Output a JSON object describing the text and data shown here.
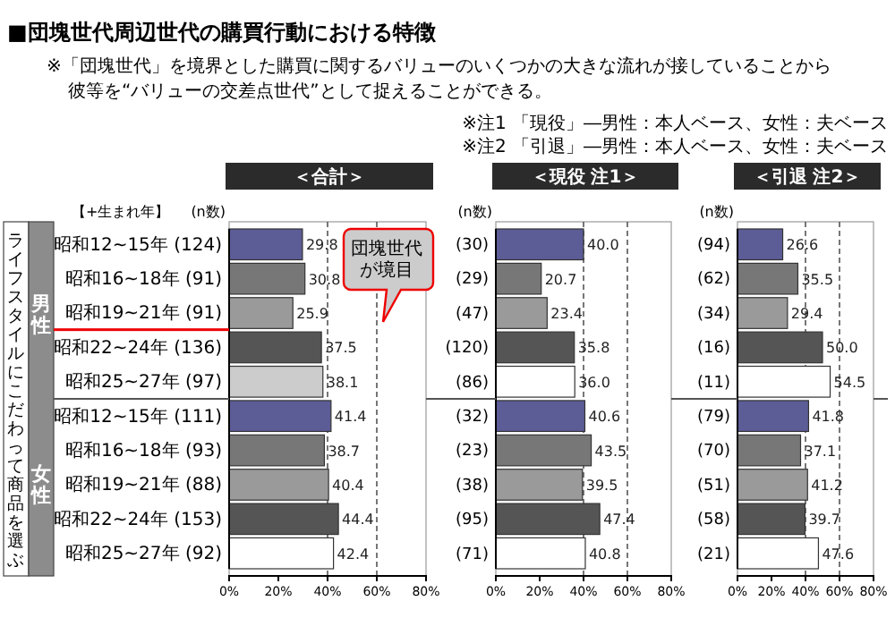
{
  "chart_data": [
    {
      "type": "bar",
      "orientation": "horizontal",
      "title": "＜合計＞",
      "categories": [
        "昭和12~15年 (124)",
        "昭和16~18年 (91)",
        "昭和19~21年 (91)",
        "昭和22~24年 (136)",
        "昭和25~27年 (97)",
        "昭和12~15年 (111)",
        "昭和16~18年 (93)",
        "昭和19~21年 (88)",
        "昭和22~24年 (153)",
        "昭和25~27年 (92)"
      ],
      "values": [
        29.8,
        30.8,
        25.9,
        37.5,
        38.1,
        41.4,
        38.7,
        40.4,
        44.4,
        42.4
      ],
      "value_labels": [
        "29.8",
        "30.8",
        "25.9",
        "37.5",
        "38.1",
        "41.4",
        "38.7",
        "40.4",
        "44.4",
        "42.4"
      ],
      "colors": [
        "#5c5c96",
        "#777777",
        "#9a9a9a",
        "#555555",
        "#cccccc",
        "#5c5c96",
        "#777777",
        "#9a9a9a",
        "#555555",
        "#ffffff"
      ],
      "xlim": [
        0,
        80
      ],
      "xticks": [
        {
          "value": 0,
          "label": "0%"
        },
        {
          "value": 20,
          "label": "20%"
        },
        {
          "value": 40,
          "label": "40%"
        },
        {
          "value": 60,
          "label": "60%"
        },
        {
          "value": 80,
          "label": "80%"
        }
      ],
      "ref_lines": [
        {
          "axis": "x",
          "value": 40,
          "line_style": "dashed"
        },
        {
          "axis": "x",
          "value": 60,
          "line_style": "dashed"
        }
      ],
      "annotations": [
        "■団塊世代周辺世代の購買行動における特徴",
        "※「団塊世代」を境界とした購買に関するバリューのいくつかの大きな流れが接していることから彼等を“バリューの交差点世代”として捉えることができる。",
        "【+生まれ年】",
        "(n数)",
        "ライフスタイルにこだわって商品を選ぶ",
        "男性",
        "女性",
        "団塊世代が境目"
      ]
    },
    {
      "type": "bar",
      "orientation": "horizontal",
      "title": "＜現役 注1＞",
      "categories": [
        "(30)",
        "(29)",
        "(47)",
        "(120)",
        "(86)",
        "(32)",
        "(23)",
        "(38)",
        "(95)",
        "(71)"
      ],
      "values": [
        40.0,
        20.7,
        23.4,
        35.8,
        36.0,
        40.6,
        43.5,
        39.5,
        47.4,
        40.8
      ],
      "value_labels": [
        "40.0",
        "20.7",
        "23.4",
        "35.8",
        "36.0",
        "40.6",
        "43.5",
        "39.5",
        "47.4",
        "40.8"
      ],
      "colors": [
        "#5c5c96",
        "#777777",
        "#9a9a9a",
        "#555555",
        "#ffffff",
        "#5c5c96",
        "#777777",
        "#9a9a9a",
        "#555555",
        "#ffffff"
      ],
      "xlim": [
        0,
        80
      ],
      "xticks": [
        {
          "value": 0,
          "label": "0%"
        },
        {
          "value": 20,
          "label": "20%"
        },
        {
          "value": 40,
          "label": "40%"
        },
        {
          "value": 60,
          "label": "60%"
        },
        {
          "value": 80,
          "label": "80%"
        }
      ],
      "ref_lines": [
        {
          "axis": "x",
          "value": 40,
          "line_style": "dashed"
        },
        {
          "axis": "x",
          "value": 60,
          "line_style": "dashed"
        }
      ],
      "annotations": [
        "(n数)"
      ]
    },
    {
      "type": "bar",
      "orientation": "horizontal",
      "title": "＜引退 注2＞",
      "categories": [
        "(94)",
        "(62)",
        "(34)",
        "(16)",
        "(11)",
        "(79)",
        "(70)",
        "(51)",
        "(58)",
        "(21)"
      ],
      "values": [
        26.6,
        35.5,
        29.4,
        50.0,
        54.5,
        41.8,
        37.1,
        41.2,
        39.7,
        47.6
      ],
      "value_labels": [
        "26.6",
        "35.5",
        "29.4",
        "50.0",
        "54.5",
        "41.8",
        "37.1",
        "41.2",
        "39.7",
        "47.6"
      ],
      "colors": [
        "#5c5c96",
        "#777777",
        "#9a9a9a",
        "#555555",
        "#ffffff",
        "#5c5c96",
        "#777777",
        "#9a9a9a",
        "#555555",
        "#ffffff"
      ],
      "xlim": [
        0,
        80
      ],
      "xticks": [
        {
          "value": 0,
          "label": "0%"
        },
        {
          "value": 20,
          "label": "20%"
        },
        {
          "value": 40,
          "label": "40%"
        },
        {
          "value": 60,
          "label": "60%"
        },
        {
          "value": 80,
          "label": "80%"
        }
      ],
      "ref_lines": [
        {
          "axis": "x",
          "value": 40,
          "line_style": "dashed"
        },
        {
          "axis": "x",
          "value": 60,
          "line_style": "dashed"
        }
      ],
      "annotations": [
        "(n数)",
        "※注1 「現役」―男性：本人ベース、女性：夫ベース",
        "※注2 「引退」―男性：本人ベース、女性：夫ベース"
      ]
    }
  ]
}
